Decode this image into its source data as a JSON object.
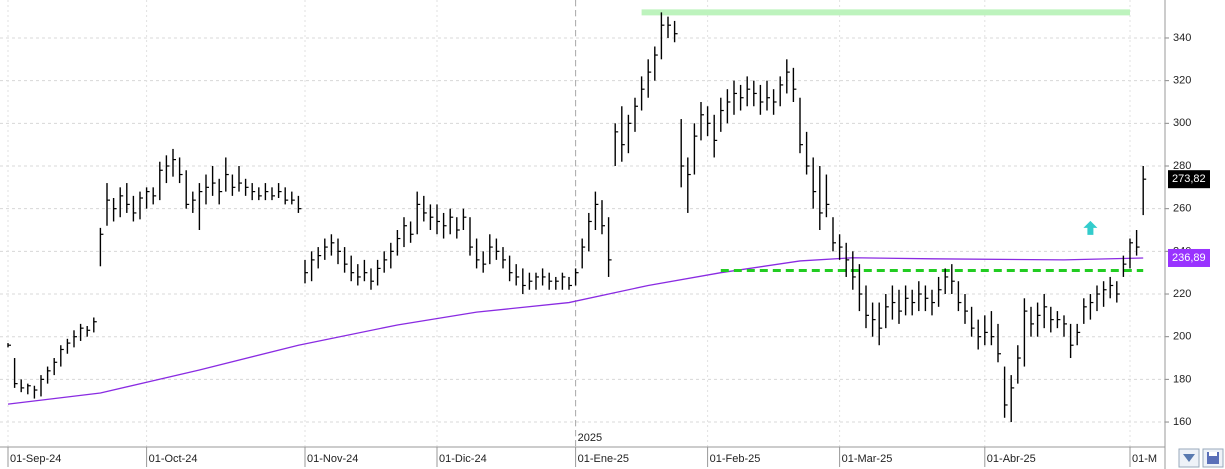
{
  "chart_data": {
    "type": "ohlc",
    "color": "#000000",
    "categories": [
      "01-Sep-24",
      null,
      null,
      null,
      null,
      null,
      null,
      null,
      null,
      null,
      null,
      null,
      null,
      null,
      null,
      null,
      null,
      null,
      null,
      null,
      null,
      "01-Oct-24",
      null,
      null,
      null,
      null,
      null,
      null,
      null,
      null,
      null,
      null,
      null,
      null,
      null,
      null,
      null,
      null,
      null,
      null,
      null,
      null,
      null,
      null,
      null,
      "01-Nov-24",
      null,
      null,
      null,
      null,
      null,
      null,
      null,
      null,
      null,
      null,
      null,
      null,
      null,
      null,
      null,
      null,
      null,
      null,
      null,
      "01-Dic-24",
      null,
      null,
      null,
      null,
      null,
      null,
      null,
      null,
      null,
      null,
      null,
      null,
      null,
      null,
      null,
      null,
      null,
      null,
      null,
      null,
      "01-Ene-25",
      null,
      null,
      null,
      null,
      null,
      null,
      null,
      null,
      null,
      null,
      null,
      null,
      null,
      null,
      null,
      null,
      null,
      null,
      null,
      "01-Feb-25",
      null,
      null,
      null,
      null,
      null,
      null,
      null,
      null,
      null,
      null,
      null,
      null,
      null,
      null,
      null,
      null,
      null,
      null,
      null,
      "01-Mar-25",
      null,
      null,
      null,
      null,
      null,
      null,
      null,
      null,
      null,
      null,
      null,
      null,
      null,
      null,
      null,
      null,
      null,
      null,
      null,
      null,
      null,
      "01-Abr-25",
      null,
      null,
      null,
      null,
      null,
      null,
      null,
      null,
      null,
      null,
      null,
      null,
      null,
      null,
      null,
      null,
      null,
      null,
      null,
      null,
      null,
      "01-M",
      null,
      null
    ],
    "high": [
      197,
      190,
      180,
      178,
      177,
      182,
      186,
      190,
      196,
      199,
      203,
      206,
      205,
      209,
      251,
      272,
      265,
      270,
      272,
      266,
      268,
      270,
      270,
      282,
      285,
      288,
      284,
      278,
      268,
      272,
      276,
      280,
      274,
      284,
      276,
      280,
      274,
      272,
      270,
      272,
      270,
      272,
      270,
      268,
      266,
      236,
      240,
      242,
      246,
      248,
      246,
      242,
      238,
      234,
      236,
      232,
      236,
      240,
      244,
      250,
      256,
      254,
      268,
      266,
      262,
      262,
      258,
      260,
      256,
      260,
      256,
      246,
      240,
      248,
      246,
      242,
      238,
      234,
      232,
      230,
      230,
      232,
      230,
      228,
      230,
      228,
      232,
      246,
      258,
      268,
      264,
      256,
      300,
      308,
      304,
      312,
      322,
      330,
      336,
      352,
      350,
      348,
      302,
      284,
      300,
      310,
      308,
      304,
      312,
      316,
      320,
      318,
      322,
      320,
      318,
      320,
      316,
      322,
      330,
      326,
      312,
      296,
      284,
      280,
      276,
      256,
      248,
      244,
      240,
      234,
      224,
      216,
      216,
      220,
      224,
      222,
      224,
      222,
      226,
      224,
      222,
      228,
      232,
      234,
      226,
      220,
      214,
      208,
      210,
      212,
      206,
      186,
      182,
      196,
      218,
      214,
      216,
      220,
      214,
      212,
      210,
      206,
      206,
      218,
      220,
      224,
      226,
      228,
      226,
      238,
      246,
      250,
      280
    ],
    "low": [
      195,
      176,
      174,
      173,
      171,
      172,
      178,
      182,
      186,
      192,
      195,
      198,
      200,
      202,
      233,
      252,
      254,
      256,
      258,
      254,
      255,
      260,
      262,
      264,
      272,
      275,
      272,
      260,
      258,
      250,
      262,
      266,
      262,
      268,
      266,
      268,
      266,
      264,
      264,
      264,
      264,
      265,
      262,
      262,
      258,
      225,
      226,
      232,
      236,
      238,
      234,
      230,
      226,
      224,
      226,
      222,
      224,
      230,
      232,
      238,
      242,
      244,
      248,
      254,
      250,
      248,
      246,
      248,
      246,
      250,
      238,
      232,
      230,
      234,
      236,
      232,
      226,
      224,
      220,
      222,
      222,
      224,
      222,
      222,
      222,
      222,
      224,
      232,
      240,
      250,
      248,
      228,
      280,
      282,
      286,
      296,
      306,
      312,
      320,
      330,
      340,
      338,
      270,
      258,
      276,
      292,
      294,
      284,
      296,
      300,
      304,
      306,
      308,
      308,
      304,
      306,
      304,
      308,
      314,
      310,
      286,
      276,
      260,
      250,
      256,
      240,
      236,
      228,
      222,
      212,
      204,
      200,
      196,
      204,
      208,
      206,
      210,
      210,
      212,
      212,
      210,
      214,
      220,
      220,
      212,
      206,
      200,
      194,
      196,
      196,
      188,
      162,
      160,
      178,
      186,
      200,
      200,
      204,
      202,
      204,
      200,
      190,
      196,
      206,
      208,
      212,
      214,
      218,
      216,
      228,
      232,
      238,
      257
    ],
    "close": [
      196,
      178,
      176,
      177,
      175,
      180,
      184,
      188,
      194,
      197,
      200,
      204,
      203,
      207,
      248,
      264,
      260,
      266,
      262,
      258,
      265,
      268,
      266,
      278,
      280,
      283,
      276,
      262,
      264,
      268,
      270,
      272,
      268,
      276,
      270,
      272,
      270,
      268,
      266,
      268,
      266,
      268,
      264,
      264,
      260,
      230,
      236,
      238,
      242,
      244,
      240,
      234,
      230,
      228,
      230,
      226,
      232,
      236,
      240,
      246,
      252,
      248,
      262,
      258,
      256,
      254,
      252,
      256,
      250,
      256,
      242,
      236,
      234,
      242,
      240,
      236,
      230,
      228,
      224,
      226,
      228,
      228,
      226,
      226,
      228,
      224,
      230,
      242,
      254,
      262,
      252,
      236,
      296,
      290,
      300,
      308,
      316,
      324,
      332,
      346,
      346,
      342,
      280,
      276,
      294,
      304,
      300,
      292,
      306,
      310,
      314,
      312,
      316,
      314,
      310,
      312,
      310,
      318,
      324,
      316,
      290,
      280,
      268,
      258,
      262,
      244,
      242,
      236,
      228,
      220,
      210,
      208,
      204,
      214,
      216,
      212,
      218,
      216,
      220,
      218,
      216,
      222,
      228,
      226,
      216,
      212,
      204,
      200,
      202,
      200,
      192,
      168,
      176,
      190,
      212,
      206,
      210,
      214,
      208,
      208,
      206,
      196,
      202,
      214,
      216,
      220,
      222,
      224,
      220,
      234,
      244,
      242,
      273.82
    ],
    "moving_average": {
      "color": "#8a2be2",
      "x": [
        0,
        14,
        29,
        44,
        59,
        71,
        85,
        97,
        108,
        120,
        128,
        140,
        160,
        172
      ],
      "values": [
        168.4,
        173.6,
        184.4,
        196,
        205.5,
        211.5,
        216,
        224,
        230,
        235.5,
        237,
        236.5,
        236,
        236.89
      ]
    },
    "hlines": [
      {
        "value": 352,
        "from": 96,
        "to": 170,
        "color": "#bdf3bd",
        "dashed": false
      },
      {
        "value": 231,
        "from": 108,
        "to": 172,
        "color": "#22cc22",
        "dashed": true
      }
    ],
    "arrow": {
      "x": 164,
      "value": 251,
      "color": "#33cccc"
    },
    "price_labels": [
      {
        "value": 273.82,
        "label": "273,82",
        "color": "#000000"
      },
      {
        "value": 236.89,
        "label": "236,89",
        "color": "#9933ff"
      }
    ],
    "year_marker": {
      "index": 86,
      "label": "2025"
    },
    "ylim": [
      148.3,
      357.8
    ],
    "yticks": [
      160,
      180,
      200,
      220,
      240,
      260,
      280,
      300,
      320,
      340
    ],
    "grid": true
  }
}
